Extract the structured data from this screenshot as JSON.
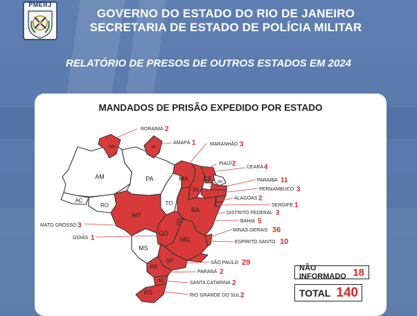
{
  "header": {
    "logo_text": "PMERJ",
    "line1": "GOVERNO DO ESTADO DO RIO DE JANEIRO",
    "line2": "SECRETARIA DE ESTADO DE POLÍCIA MILITAR"
  },
  "report_title": "RELATÓRIO DE PRESOS DE OUTROS ESTADOS EM 2024",
  "card": {
    "title": "MANDADOS DE PRISÃO EXPEDIDO POR ESTADO"
  },
  "colors": {
    "highlight": "#d83a3a",
    "background": "#5b7bb0",
    "count_red": "#d52a2a"
  },
  "map": {
    "state_labels": [
      {
        "id": "rr",
        "text": "RR"
      },
      {
        "id": "ap",
        "text": "AP"
      },
      {
        "id": "am",
        "text": "AM"
      },
      {
        "id": "pa",
        "text": "PA"
      },
      {
        "id": "ma",
        "text": "MA"
      },
      {
        "id": "ce",
        "text": "CE"
      },
      {
        "id": "pi",
        "text": "PI"
      },
      {
        "id": "rn",
        "text": "RN"
      },
      {
        "id": "to",
        "text": "TO"
      },
      {
        "id": "ac",
        "text": "AC"
      },
      {
        "id": "ro",
        "text": "RO"
      },
      {
        "id": "mt",
        "text": "MT"
      },
      {
        "id": "ba",
        "text": "BA"
      },
      {
        "id": "df",
        "text": "DF"
      },
      {
        "id": "go",
        "text": "GO"
      },
      {
        "id": "mg",
        "text": "MG"
      },
      {
        "id": "ms",
        "text": "MS"
      },
      {
        "id": "sp",
        "text": "SP"
      },
      {
        "id": "pr",
        "text": "PR"
      },
      {
        "id": "sc",
        "text": "SC"
      },
      {
        "id": "rs",
        "text": "RS"
      }
    ],
    "callouts": [
      {
        "id": "roraima",
        "name": "RORAIMA",
        "count": "2"
      },
      {
        "id": "amapa",
        "name": "AMAPÁ",
        "count": "1"
      },
      {
        "id": "maranhao",
        "name": "MARANHÃO",
        "count": "3"
      },
      {
        "id": "piaui",
        "name": "PIAUÍ",
        "count": "2"
      },
      {
        "id": "ceara",
        "name": "CEARÁ",
        "count": "4"
      },
      {
        "id": "paraiba",
        "name": "PARAÍBA",
        "count": "11"
      },
      {
        "id": "pernambuco",
        "name": "PERNAMBUCO",
        "count": "3"
      },
      {
        "id": "alagoas",
        "name": "ALAGOAS",
        "count": "2"
      },
      {
        "id": "sergipe",
        "name": "SERGIPE",
        "count": "1"
      },
      {
        "id": "distrito_federal",
        "name": "DISTRITO FEDERAL",
        "count": "3"
      },
      {
        "id": "bahia",
        "name": "BAHIA",
        "count": "5"
      },
      {
        "id": "minas_gerais",
        "name": "MINAS GERAIS",
        "count": "36"
      },
      {
        "id": "espirito_santo",
        "name": "ESPÍRITO SANTO",
        "count": "10"
      },
      {
        "id": "mato_grosso",
        "name": "MATO GROSSO",
        "count": "3"
      },
      {
        "id": "goias",
        "name": "GOIÁS",
        "count": "1"
      },
      {
        "id": "sao_paulo",
        "name": "SÃO PAULO",
        "count": "29"
      },
      {
        "id": "parana",
        "name": "PARANÁ",
        "count": "2"
      },
      {
        "id": "santa_catarina",
        "name": "SANTA CATARINA",
        "count": "2"
      },
      {
        "id": "rio_grande_do_sul",
        "name": "RIO GRANDE DO SUL",
        "count": "2"
      }
    ]
  },
  "summary": {
    "not_informed_label": "NÃO INFORMADO",
    "not_informed_value": "18",
    "total_label": "TOTAL",
    "total_value": "140"
  }
}
